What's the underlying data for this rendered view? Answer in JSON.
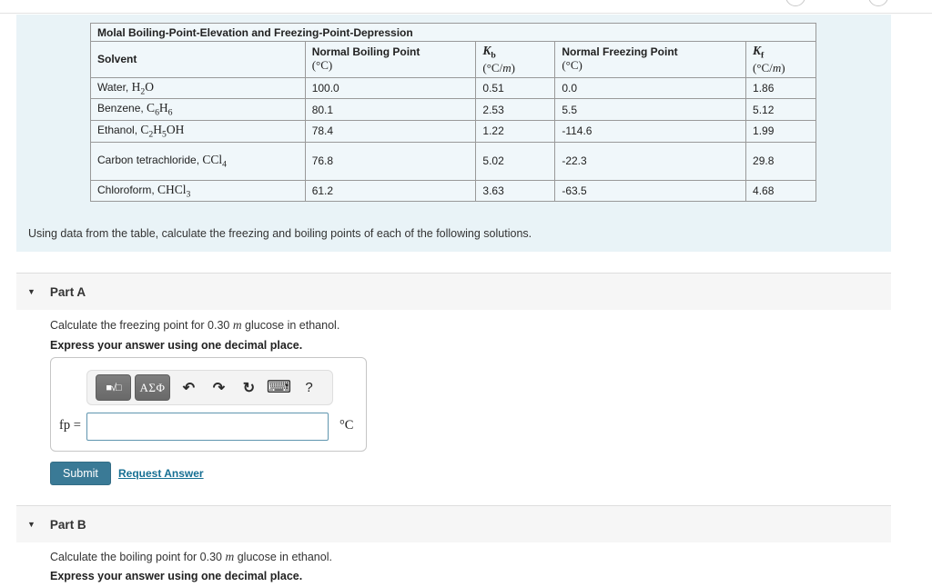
{
  "icons": {
    "collapse": "▼",
    "circle_note": "partial-circle-buttons-top-right"
  },
  "intro": {
    "text": "Using data from the table, calculate the freezing and boiling points of each of the following solutions."
  },
  "table": {
    "title": "Molal Boiling-Point-Elevation and Freezing-Point-Depression",
    "headers": {
      "solvent": "Solvent",
      "nbp_label": "Normal Boiling Point",
      "nbp_unit": "(°C)",
      "kb_symbol": [
        [
          "K",
          "i"
        ],
        [
          "b",
          "sub"
        ]
      ],
      "kb_unit": [
        [
          "(°C/"
        ],
        [
          "m",
          "i"
        ],
        [
          ")"
        ]
      ],
      "nfp_label": "Normal Freezing Point",
      "nfp_unit": "(°C)",
      "kf_symbol": [
        [
          "K",
          "i"
        ],
        [
          "f",
          "sub"
        ]
      ],
      "kf_unit": [
        [
          "(°C/"
        ],
        [
          "m",
          "i"
        ],
        [
          ")"
        ]
      ]
    },
    "rows": [
      {
        "name": "Water, ",
        "formula": [
          [
            "H"
          ],
          [
            "2",
            "sub"
          ],
          [
            "O"
          ]
        ],
        "nbp": "100.0",
        "kb": "0.51",
        "nfp": "0.0",
        "kf": "1.86"
      },
      {
        "name": "Benzene, ",
        "formula": [
          [
            "C"
          ],
          [
            "6",
            "sub"
          ],
          [
            "H"
          ],
          [
            "6",
            "sub"
          ]
        ],
        "nbp": "80.1",
        "kb": "2.53",
        "nfp": "5.5",
        "kf": "5.12"
      },
      {
        "name": "Ethanol, ",
        "formula": [
          [
            "C"
          ],
          [
            "2",
            "sub"
          ],
          [
            "H"
          ],
          [
            "5",
            "sub"
          ],
          [
            "OH"
          ]
        ],
        "nbp": "78.4",
        "kb": "1.22",
        "nfp": "-114.6",
        "kf": "1.99"
      },
      {
        "name": "Carbon tetrachloride, ",
        "formula": [
          [
            "CCl"
          ],
          [
            "4",
            "sub"
          ]
        ],
        "nbp": "76.8",
        "kb": "5.02",
        "nfp": "-22.3",
        "kf": "29.8"
      },
      {
        "name": "Chloroform, ",
        "formula": [
          [
            "CHCl"
          ],
          [
            "3",
            "sub"
          ]
        ],
        "nbp": "61.2",
        "kb": "3.63",
        "nfp": "-63.5",
        "kf": "4.68"
      }
    ]
  },
  "part_a": {
    "title": "Part A",
    "question_prefix": "Calculate the freezing point for 0.30 ",
    "question_italic": "m",
    "question_suffix": " glucose in ethanol.",
    "instruction": "Express your answer using one decimal place.",
    "toolbar": {
      "templates_icon": "■√□",
      "greek_label": "ΑΣΦ",
      "undo_icon": "↶",
      "redo_icon": "↷",
      "reset_icon": "↻",
      "keyboard_icon": "⌨",
      "help_label": "?"
    },
    "answer_label": "fp =",
    "input_value": "",
    "unit": "°C",
    "submit_label": "Submit",
    "request_answer_label": "Request Answer"
  },
  "part_b": {
    "title": "Part B",
    "question_prefix": "Calculate the boiling point for 0.30 ",
    "question_italic": "m",
    "question_suffix": " glucose in ethanol.",
    "instruction": "Express your answer using one decimal place."
  },
  "colors": {
    "accent": "#3a7a96",
    "link": "#166f93",
    "band_background": "#e9f3f7",
    "input_border": "#5f95af"
  }
}
